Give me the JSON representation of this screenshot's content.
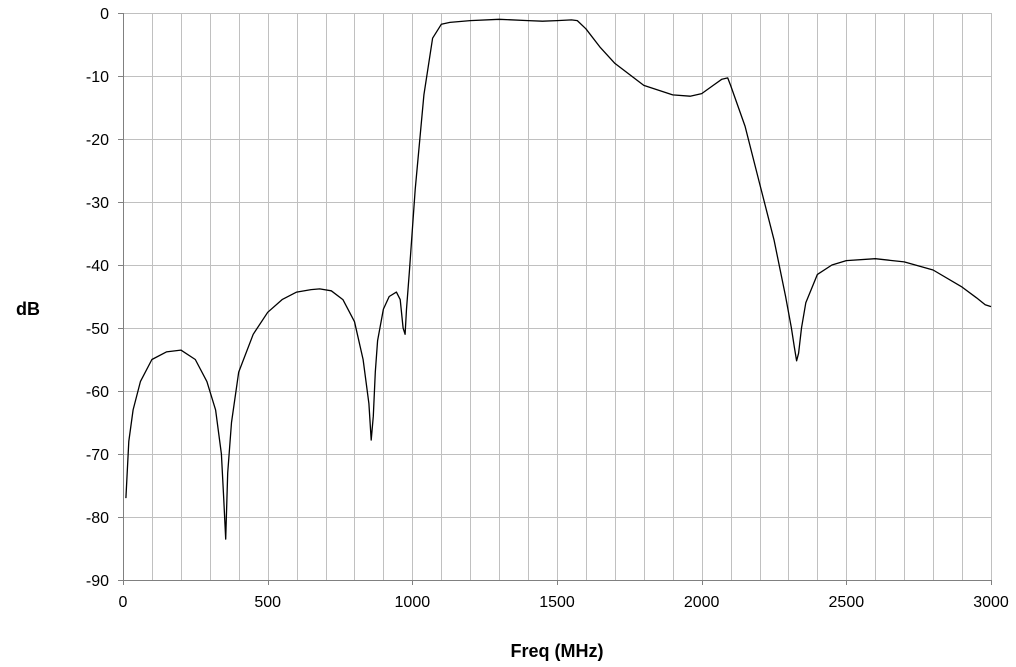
{
  "chart_data": {
    "type": "line",
    "title": "",
    "xlabel": "Freq (MHz)",
    "ylabel": "dB",
    "xlim": [
      0,
      3000
    ],
    "ylim": [
      -90,
      0
    ],
    "x_ticks": [
      0,
      500,
      1000,
      1500,
      2000,
      2500,
      3000
    ],
    "y_ticks": [
      0,
      -10,
      -20,
      -30,
      -40,
      -50,
      -60,
      -70,
      -80,
      -90
    ],
    "x_minor_step": 100,
    "grid": true,
    "legend": "none",
    "line_color": "#000000",
    "series": [
      {
        "x": [
          10,
          20,
          35,
          60,
          100,
          150,
          200,
          250,
          290,
          320,
          340,
          348,
          355,
          362,
          375,
          400,
          450,
          500,
          550,
          600,
          650,
          680,
          720,
          760,
          800,
          830,
          850,
          858,
          865,
          872,
          880,
          900,
          920,
          945,
          958,
          968,
          975,
          980,
          990,
          1010,
          1040,
          1070,
          1100,
          1130,
          1200,
          1300,
          1400,
          1450,
          1500,
          1550,
          1570,
          1600,
          1650,
          1700,
          1800,
          1900,
          1960,
          2000,
          2040,
          2070,
          2090,
          2100,
          2150,
          2200,
          2250,
          2290,
          2310,
          2320,
          2328,
          2335,
          2345,
          2360,
          2400,
          2450,
          2500,
          2600,
          2700,
          2800,
          2900,
          2950,
          2980,
          3000
        ],
        "y": [
          -77,
          -68,
          -63,
          -58.5,
          -55,
          -53.8,
          -53.5,
          -55,
          -58.5,
          -63,
          -70,
          -77,
          -83.5,
          -73,
          -65,
          -57,
          -51,
          -47.5,
          -45.5,
          -44.3,
          -43.9,
          -43.8,
          -44.1,
          -45.5,
          -49,
          -55,
          -62,
          -67.8,
          -64,
          -57,
          -52,
          -47,
          -45,
          -44.3,
          -45.5,
          -50,
          -51,
          -47,
          -41,
          -28,
          -13,
          -4,
          -1.8,
          -1.5,
          -1.2,
          -1,
          -1.2,
          -1.3,
          -1.2,
          -1.1,
          -1.2,
          -2.5,
          -5.5,
          -8,
          -11.5,
          -13,
          -13.2,
          -12.8,
          -11.5,
          -10.5,
          -10.3,
          -11.5,
          -18,
          -27,
          -36,
          -45,
          -50,
          -53,
          -55.2,
          -54,
          -50,
          -46,
          -41.5,
          -40,
          -39.3,
          -39,
          -39.5,
          -40.8,
          -43.5,
          -45.2,
          -46.3,
          -46.6
        ]
      }
    ]
  }
}
